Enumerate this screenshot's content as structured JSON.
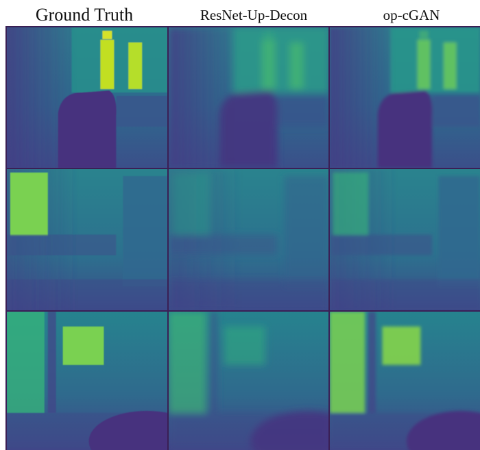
{
  "header": {
    "columns": [
      "Ground Truth",
      "ResNet-Up-Decon",
      "op-cGAN"
    ]
  }
}
